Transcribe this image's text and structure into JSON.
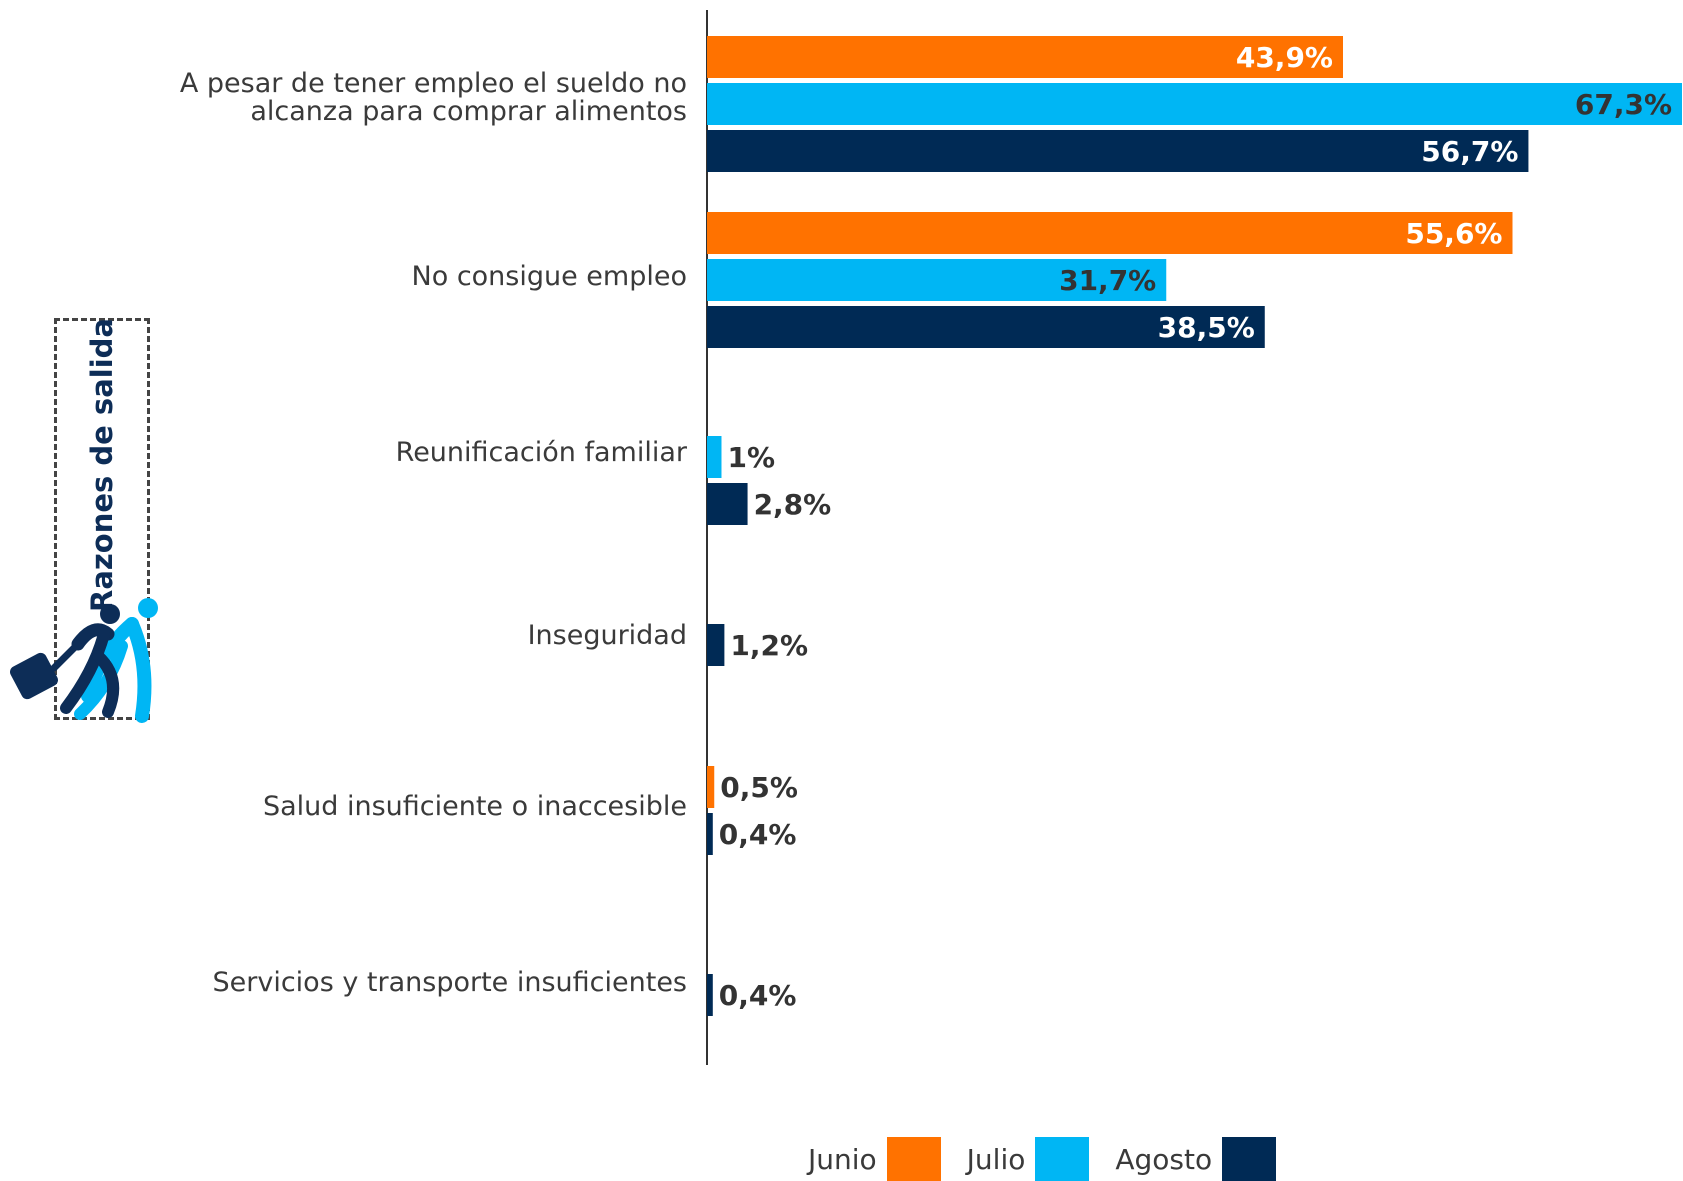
{
  "badge": {
    "text": "Razones de salida",
    "icon": "migrant-with-suitcase-icon"
  },
  "colors": {
    "junio": "#ff7200",
    "julio": "#00b6f4",
    "agosto": "#002a55",
    "label_dark": "#333333",
    "label_light": "#ffffff"
  },
  "chart_data": {
    "type": "bar",
    "orientation": "horizontal",
    "categories": [
      [
        "A pesar de tener empleo el sueldo no",
        "alcanza para comprar alimentos"
      ],
      [
        "No consigue empleo"
      ],
      [
        "Reunificación familiar"
      ],
      [
        "Inseguridad"
      ],
      [
        "Salud insuficiente o inaccesible"
      ],
      [
        "Servicios  y transporte insuficientes"
      ]
    ],
    "series": [
      {
        "name": "Junio",
        "values": [
          43.9,
          55.6,
          null,
          null,
          0.5,
          null
        ],
        "labels": [
          "43,9%",
          "55,6%",
          "",
          "",
          "0,5%",
          ""
        ]
      },
      {
        "name": "Julio",
        "values": [
          67.3,
          31.7,
          1.0,
          null,
          null,
          null
        ],
        "labels": [
          "67,3%",
          "31,7%",
          "1%",
          "",
          "",
          ""
        ]
      },
      {
        "name": "Agosto",
        "values": [
          56.7,
          38.5,
          2.8,
          1.2,
          0.4,
          0.4
        ],
        "labels": [
          "56,7%",
          "38,5%",
          "2,8%",
          "1,2%",
          "0,4%",
          "0,4%"
        ]
      }
    ],
    "xlim": [
      0,
      67.3
    ],
    "legend": "bottom-center",
    "grid": false
  },
  "legend": [
    {
      "label": "Junio"
    },
    {
      "label": "Julio"
    },
    {
      "label": "Agosto"
    }
  ]
}
